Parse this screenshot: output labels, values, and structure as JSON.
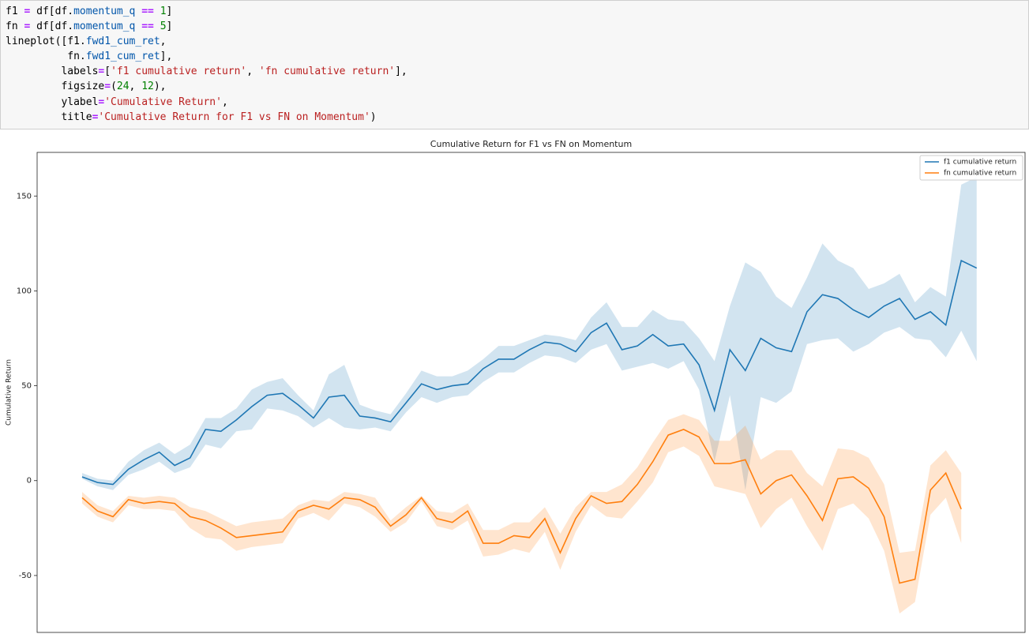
{
  "code": {
    "lines": [
      [
        {
          "text": "f1 "
        },
        {
          "text": "=",
          "style": "op"
        },
        {
          "text": " df[df."
        },
        {
          "text": "momentum_q",
          "style": "attr"
        },
        {
          "text": " "
        },
        {
          "text": "==",
          "style": "op"
        },
        {
          "text": " "
        },
        {
          "text": "1",
          "style": "num"
        },
        {
          "text": "]"
        }
      ],
      [
        {
          "text": "fn "
        },
        {
          "text": "=",
          "style": "op"
        },
        {
          "text": " df[df."
        },
        {
          "text": "momentum_q",
          "style": "attr"
        },
        {
          "text": " "
        },
        {
          "text": "==",
          "style": "op"
        },
        {
          "text": " "
        },
        {
          "text": "5",
          "style": "num"
        },
        {
          "text": "]"
        }
      ],
      [
        {
          "text": "lineplot([f1."
        },
        {
          "text": "fwd1_cum_ret",
          "style": "attr"
        },
        {
          "text": ","
        }
      ],
      [
        {
          "text": "          fn."
        },
        {
          "text": "fwd1_cum_ret",
          "style": "attr"
        },
        {
          "text": "],"
        }
      ],
      [
        {
          "text": "         labels"
        },
        {
          "text": "=",
          "style": "op"
        },
        {
          "text": "["
        },
        {
          "text": "'f1 cumulative return'",
          "style": "str"
        },
        {
          "text": ", "
        },
        {
          "text": "'fn cumulative return'",
          "style": "str"
        },
        {
          "text": "],"
        }
      ],
      [
        {
          "text": "         figsize"
        },
        {
          "text": "=",
          "style": "op"
        },
        {
          "text": "("
        },
        {
          "text": "24",
          "style": "num"
        },
        {
          "text": ", "
        },
        {
          "text": "12",
          "style": "num"
        },
        {
          "text": "),"
        }
      ],
      [
        {
          "text": "         ylabel"
        },
        {
          "text": "=",
          "style": "op"
        },
        {
          "text": "'Cumulative Return'",
          "style": "str"
        },
        {
          "text": ","
        }
      ],
      [
        {
          "text": "         title"
        },
        {
          "text": "=",
          "style": "op"
        },
        {
          "text": "'Cumulative Return for F1 vs FN on Momentum'",
          "style": "str"
        },
        {
          "text": ")"
        }
      ]
    ]
  },
  "chart_data": {
    "type": "line",
    "title": "Cumulative Return for F1 vs FN on Momentum",
    "ylabel": "Cumulative Return",
    "ylim": [
      -80,
      173
    ],
    "yticks": [
      -50,
      0,
      50,
      100,
      150
    ],
    "legend": "upper right",
    "series": [
      {
        "name": "f1 cumulative return",
        "color": "#1f77b4",
        "values": [
          2,
          -1,
          -2,
          6,
          11,
          15,
          8,
          12,
          27,
          26,
          32,
          39,
          45,
          46,
          40,
          33,
          44,
          45,
          34,
          33,
          31,
          41,
          51,
          48,
          50,
          51,
          59,
          64,
          64,
          69,
          73,
          72,
          68,
          78,
          83,
          69,
          71,
          77,
          71,
          72,
          61,
          37,
          69,
          58,
          75,
          70,
          68,
          89,
          98,
          96,
          90,
          86,
          92,
          96,
          85,
          89,
          82,
          116,
          112
        ],
        "upper": [
          4,
          1,
          0,
          10,
          16,
          20,
          14,
          19,
          33,
          33,
          38,
          48,
          52,
          54,
          45,
          37,
          56,
          61,
          40,
          37,
          35,
          46,
          58,
          55,
          55,
          58,
          64,
          71,
          71,
          74,
          77,
          76,
          74,
          86,
          94,
          81,
          81,
          90,
          85,
          84,
          75,
          63,
          92,
          115,
          110,
          97,
          91,
          107,
          125,
          116,
          112,
          101,
          104,
          109,
          94,
          102,
          97,
          156,
          160
        ],
        "lower": [
          1,
          -3,
          -5,
          3,
          6,
          10,
          4,
          7,
          19,
          17,
          26,
          27,
          38,
          37,
          34,
          28,
          33,
          28,
          27,
          28,
          26,
          36,
          44,
          41,
          44,
          45,
          52,
          57,
          57,
          62,
          66,
          65,
          62,
          69,
          72,
          58,
          60,
          62,
          59,
          63,
          48,
          10,
          45,
          -5,
          44,
          41,
          47,
          72,
          74,
          75,
          68,
          72,
          78,
          81,
          75,
          74,
          65,
          79,
          63
        ]
      },
      {
        "name": "fn cumulative return",
        "color": "#ff7f0e",
        "values": [
          -9,
          -16,
          -19,
          -10,
          -12,
          -11,
          -12,
          -19,
          -21,
          -25,
          -30,
          -29,
          -28,
          -27,
          -16,
          -13,
          -15,
          -9,
          -10,
          -14,
          -24,
          -18,
          -9,
          -20,
          -22,
          -16,
          -33,
          -33,
          -29,
          -30,
          -20,
          -38,
          -20,
          -8,
          -12,
          -11,
          -2,
          10,
          24,
          27,
          23,
          9,
          9,
          11,
          -7,
          0,
          3,
          -8,
          -21,
          1,
          2,
          -4,
          -19,
          -54,
          -52,
          -5,
          4,
          -15
        ],
        "upper": [
          -6,
          -13,
          -16,
          -8,
          -9,
          -8,
          -9,
          -14,
          -16,
          -20,
          -24,
          -22,
          -21,
          -20,
          -13,
          -10,
          -11,
          -6,
          -7,
          -9,
          -21,
          -14,
          -8,
          -16,
          -17,
          -12,
          -26,
          -26,
          -22,
          -22,
          -14,
          -28,
          -14,
          -6,
          -6,
          -2,
          7,
          20,
          32,
          35,
          32,
          21,
          21,
          29,
          11,
          16,
          16,
          4,
          -3,
          17,
          16,
          12,
          -2,
          -38,
          -37,
          8,
          16,
          4
        ],
        "lower": [
          -12,
          -19,
          -22,
          -13,
          -15,
          -15,
          -16,
          -25,
          -30,
          -31,
          -37,
          -35,
          -34,
          -33,
          -20,
          -17,
          -21,
          -12,
          -14,
          -19,
          -27,
          -22,
          -11,
          -24,
          -26,
          -21,
          -40,
          -39,
          -36,
          -38,
          -27,
          -47,
          -27,
          -13,
          -19,
          -20,
          -11,
          -1,
          15,
          18,
          13,
          -3,
          -5,
          -7,
          -25,
          -15,
          -9,
          -24,
          -37,
          -15,
          -12,
          -20,
          -37,
          -70,
          -64,
          -18,
          -9,
          -33
        ]
      }
    ]
  }
}
